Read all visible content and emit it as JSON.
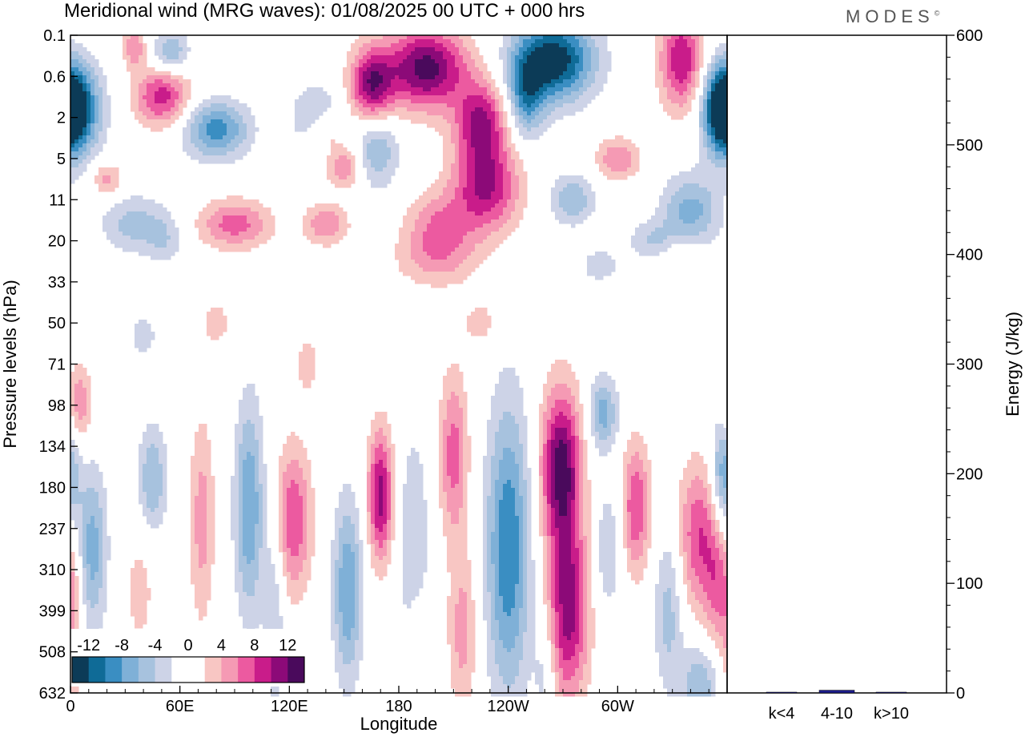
{
  "title": "Meridional wind (MRG waves):  01/08/2025  00 UTC  + 000 hrs",
  "brand": "MODES",
  "brand_mark": "©",
  "chart_data": [
    {
      "type": "heatmap",
      "title": "Meridional wind (MRG waves):  01/08/2025  00 UTC  + 000 hrs",
      "xlabel": "Longitude",
      "ylabel": "Pressure levels (hPa)",
      "x_ticks": [
        "0",
        "60E",
        "120E",
        "180",
        "120W",
        "60W"
      ],
      "x_tick_values": [
        0,
        60,
        120,
        180,
        240,
        300
      ],
      "xlim": [
        0,
        360
      ],
      "y_ticks": [
        "0.1",
        "0.6",
        "2",
        "5",
        "11",
        "20",
        "33",
        "50",
        "71",
        "98",
        "134",
        "180",
        "237",
        "310",
        "399",
        "508",
        "632"
      ],
      "colorbar": {
        "labels": [
          "-12",
          "-8",
          "-4",
          "0",
          "4",
          "8",
          "12"
        ],
        "colors": [
          "#0c3b57",
          "#0f6b97",
          "#3a8ec2",
          "#7fb0d7",
          "#a7c2de",
          "#cdd3e7",
          "#ffffff",
          "#ffffff",
          "#f8c6c3",
          "#f59ab4",
          "#ec5aa0",
          "#c91c8a",
          "#8c0a78",
          "#4a0a5c"
        ]
      },
      "blobs": [
        {
          "lon": 195,
          "lev": 0.8,
          "rx": 22,
          "ry": 1.0,
          "v": 13
        },
        {
          "lon": 165,
          "lev": 1.2,
          "rx": 12,
          "ry": 0.9,
          "v": 11
        },
        {
          "lon": 225,
          "lev": 2.1,
          "rx": 14,
          "ry": 1.0,
          "v": 10
        },
        {
          "lon": 228,
          "lev": 3.7,
          "rx": 18,
          "ry": 1.1,
          "v": 10
        },
        {
          "lon": 202,
          "lev": 4.7,
          "rx": 18,
          "ry": 0.9,
          "v": 6
        },
        {
          "lon": 265,
          "lev": 0.6,
          "rx": 22,
          "ry": 1.0,
          "v": -14
        },
        {
          "lon": 250,
          "lev": 1.5,
          "rx": 10,
          "ry": 1.0,
          "v": -8
        },
        {
          "lon": 3,
          "lev": 1.8,
          "rx": 14,
          "ry": 1.1,
          "v": -12
        },
        {
          "lon": 357,
          "lev": 1.8,
          "rx": 10,
          "ry": 1.1,
          "v": -10
        },
        {
          "lon": 168,
          "lev": 2.8,
          "rx": 12,
          "ry": 0.9,
          "v": -6
        },
        {
          "lon": 35,
          "lev": 0.3,
          "rx": 6,
          "ry": 0.5,
          "v": 6
        },
        {
          "lon": 55,
          "lev": 0.4,
          "rx": 10,
          "ry": 0.5,
          "v": -6
        },
        {
          "lon": 50,
          "lev": 1.5,
          "rx": 15,
          "ry": 0.7,
          "v": 9
        },
        {
          "lon": 80,
          "lev": 2.3,
          "rx": 18,
          "ry": 0.7,
          "v": -9
        },
        {
          "lon": 135,
          "lev": 2.0,
          "rx": 14,
          "ry": 0.8,
          "v": -5
        },
        {
          "lon": 140,
          "lev": 2.3,
          "rx": 10,
          "ry": 0.5,
          "v": 5
        },
        {
          "lon": 90,
          "lev": 4.6,
          "rx": 20,
          "ry": 0.6,
          "v": 7
        },
        {
          "lon": 35,
          "lev": 4.6,
          "rx": 18,
          "ry": 0.7,
          "v": -5
        },
        {
          "lon": 140,
          "lev": 4.6,
          "rx": 12,
          "ry": 0.5,
          "v": 6
        },
        {
          "lon": 275,
          "lev": 4.0,
          "rx": 12,
          "ry": 0.6,
          "v": -6
        },
        {
          "lon": 340,
          "lev": 4.3,
          "rx": 16,
          "ry": 0.9,
          "v": -7
        },
        {
          "lon": 150,
          "lev": 3.2,
          "rx": 10,
          "ry": 0.5,
          "v": 6
        },
        {
          "lon": 335,
          "lev": 0.6,
          "rx": 12,
          "ry": 1.2,
          "v": 10
        },
        {
          "lon": 300,
          "lev": 3.0,
          "rx": 12,
          "ry": 0.5,
          "v": 6
        },
        {
          "lon": 20,
          "lev": 3.5,
          "rx": 8,
          "ry": 0.4,
          "v": 5
        },
        {
          "lon": 200,
          "lev": 5.5,
          "rx": 25,
          "ry": 0.7,
          "v": 3
        },
        {
          "lon": 320,
          "lev": 5.0,
          "rx": 14,
          "ry": 0.5,
          "v": -4
        },
        {
          "lon": 52,
          "lev": 5.0,
          "rx": 10,
          "ry": 0.6,
          "v": -3
        },
        {
          "lon": 335,
          "lev": 5.3,
          "rx": 12,
          "ry": 0.6,
          "v": 3
        },
        {
          "lon": 290,
          "lev": 5.6,
          "rx": 12,
          "ry": 0.5,
          "v": -3
        },
        {
          "lon": 80,
          "lev": 7.0,
          "rx": 8,
          "ry": 0.6,
          "v": 3
        },
        {
          "lon": 40,
          "lev": 7.3,
          "rx": 8,
          "ry": 0.6,
          "v": -3
        },
        {
          "lon": 130,
          "lev": 8.0,
          "rx": 7,
          "ry": 0.8,
          "v": 3
        },
        {
          "lon": 225,
          "lev": 7.0,
          "rx": 10,
          "ry": 0.6,
          "v": 3
        },
        {
          "lon": 5,
          "lev": 9.0,
          "rx": 7,
          "ry": 1.0,
          "v": 6
        },
        {
          "lon": 12,
          "lev": 12.5,
          "rx": 8,
          "ry": 2.0,
          "v": -7
        },
        {
          "lon": 45,
          "lev": 10.8,
          "rx": 8,
          "ry": 1.3,
          "v": -6
        },
        {
          "lon": 72,
          "lev": 11.8,
          "rx": 7,
          "ry": 2.5,
          "v": 5
        },
        {
          "lon": 98,
          "lev": 11.5,
          "rx": 8,
          "ry": 2.6,
          "v": -8
        },
        {
          "lon": 122,
          "lev": 11.8,
          "rx": 10,
          "ry": 1.8,
          "v": 8
        },
        {
          "lon": 152,
          "lev": 13.5,
          "rx": 8,
          "ry": 2.2,
          "v": -8
        },
        {
          "lon": 170,
          "lev": 11.2,
          "rx": 7,
          "ry": 1.6,
          "v": 11
        },
        {
          "lon": 188,
          "lev": 12.5,
          "rx": 9,
          "ry": 3.0,
          "v": -4
        },
        {
          "lon": 210,
          "lev": 10.2,
          "rx": 8,
          "ry": 2.0,
          "v": 7
        },
        {
          "lon": 215,
          "lev": 14.5,
          "rx": 8,
          "ry": 2.0,
          "v": 5
        },
        {
          "lon": 240,
          "lev": 12.5,
          "rx": 12,
          "ry": 3.5,
          "v": -10
        },
        {
          "lon": 269,
          "lev": 10.5,
          "rx": 11,
          "ry": 1.9,
          "v": 13
        },
        {
          "lon": 273,
          "lev": 14.0,
          "rx": 11,
          "ry": 2.2,
          "v": 11
        },
        {
          "lon": 292,
          "lev": 9.2,
          "rx": 8,
          "ry": 0.9,
          "v": -7
        },
        {
          "lon": 310,
          "lev": 11.5,
          "rx": 8,
          "ry": 1.6,
          "v": 8
        },
        {
          "lon": 295,
          "lev": 12.5,
          "rx": 8,
          "ry": 1.5,
          "v": -4
        },
        {
          "lon": 345,
          "lev": 12.2,
          "rx": 12,
          "ry": 1.8,
          "v": 8
        },
        {
          "lon": 358,
          "lev": 10.7,
          "rx": 7,
          "ry": 1.4,
          "v": -8
        },
        {
          "lon": 355,
          "lev": 13.5,
          "rx": 7,
          "ry": 1.5,
          "v": 5
        },
        {
          "lon": 2,
          "lev": 14.5,
          "rx": 5,
          "ry": 2.0,
          "v": 4
        },
        {
          "lon": 38,
          "lev": 13.5,
          "rx": 8,
          "ry": 1.5,
          "v": 3
        },
        {
          "lon": 112,
          "lev": 14.0,
          "rx": 6,
          "ry": 2.5,
          "v": -4
        },
        {
          "lon": 328,
          "lev": 14.0,
          "rx": 8,
          "ry": 2.0,
          "v": -5
        },
        {
          "lon": 345,
          "lev": 15.8,
          "rx": 10,
          "ry": 1.0,
          "v": -6
        },
        {
          "lon": 190,
          "lev": 15.0,
          "rx": 6,
          "ry": 1.5,
          "v": 3
        },
        {
          "lon": 260,
          "lev": 15.5,
          "rx": 6,
          "ry": 1.3,
          "v": -3
        }
      ]
    },
    {
      "type": "bar",
      "ylabel": "Energy (J/kg)",
      "ylim": [
        0,
        600
      ],
      "y_ticks": [
        "0",
        "100",
        "200",
        "300",
        "400",
        "500",
        "600"
      ],
      "categories": [
        "k<4",
        "4-10",
        "k>10"
      ],
      "values": [
        0.3,
        2.5,
        0.2
      ],
      "colors": [
        "#1c1c8a",
        "#1c1c8a",
        "#1c1c8a"
      ]
    }
  ]
}
